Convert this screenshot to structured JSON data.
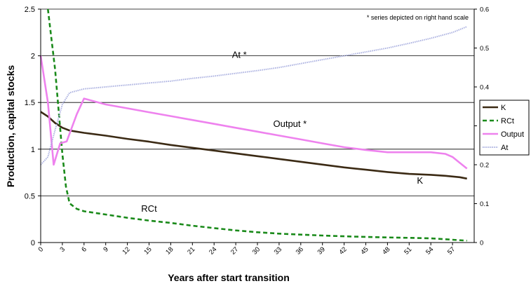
{
  "chart_data": {
    "type": "line",
    "note": "* series depicted on right hand scale",
    "xlabel": "Years after start transition",
    "ylabel": "Production, capital stocks",
    "x_ticks": [
      "0",
      "3",
      "6",
      "9",
      "12",
      "15",
      "18",
      "21",
      "24",
      "27",
      "30",
      "33",
      "36",
      "39",
      "42",
      "45",
      "48",
      "51",
      "54",
      "57"
    ],
    "xlim": [
      0,
      60
    ],
    "ylim_left": [
      0,
      2.5
    ],
    "yticks_left": [
      "0",
      "0.5",
      "1",
      "1.5",
      "2",
      "2.5"
    ],
    "ylim_right": [
      0,
      0.6
    ],
    "yticks_right": [
      "0",
      "0.1",
      "0.2",
      "0.3",
      "0.4",
      "0.5",
      "0.6"
    ],
    "grid": "horizontal",
    "legend_position": "right",
    "series": [
      {
        "name": "K",
        "axis": "left",
        "color": "#3b2a14",
        "dash": "solid",
        "points": [
          [
            0,
            1.4
          ],
          [
            1,
            1.35
          ],
          [
            2,
            1.28
          ],
          [
            3,
            1.23
          ],
          [
            4,
            1.2
          ],
          [
            6,
            1.175
          ],
          [
            9,
            1.145
          ],
          [
            12,
            1.11
          ],
          [
            15,
            1.08
          ],
          [
            18,
            1.045
          ],
          [
            21,
            1.015
          ],
          [
            24,
            0.985
          ],
          [
            27,
            0.955
          ],
          [
            30,
            0.925
          ],
          [
            33,
            0.895
          ],
          [
            36,
            0.865
          ],
          [
            39,
            0.835
          ],
          [
            42,
            0.805
          ],
          [
            45,
            0.78
          ],
          [
            48,
            0.755
          ],
          [
            51,
            0.735
          ],
          [
            54,
            0.725
          ],
          [
            56,
            0.715
          ],
          [
            58,
            0.7
          ],
          [
            59,
            0.685
          ]
        ]
      },
      {
        "name": "RCt",
        "axis": "left",
        "color": "#1a8a1a",
        "dash": "dashed",
        "points": [
          [
            1,
            2.5
          ],
          [
            2,
            1.85
          ],
          [
            3,
            0.95
          ],
          [
            3.5,
            0.6
          ],
          [
            4,
            0.42
          ],
          [
            5,
            0.36
          ],
          [
            6,
            0.335
          ],
          [
            9,
            0.3
          ],
          [
            12,
            0.265
          ],
          [
            15,
            0.235
          ],
          [
            18,
            0.21
          ],
          [
            21,
            0.18
          ],
          [
            24,
            0.155
          ],
          [
            27,
            0.13
          ],
          [
            30,
            0.11
          ],
          [
            33,
            0.095
          ],
          [
            36,
            0.085
          ],
          [
            39,
            0.075
          ],
          [
            42,
            0.067
          ],
          [
            45,
            0.06
          ],
          [
            48,
            0.055
          ],
          [
            51,
            0.05
          ],
          [
            54,
            0.045
          ],
          [
            57,
            0.03
          ],
          [
            59,
            0.02
          ]
        ]
      },
      {
        "name": "Output",
        "axis": "right",
        "color": "#ee82ee",
        "dash": "solid",
        "points": [
          [
            0,
            0.48
          ],
          [
            1,
            0.36
          ],
          [
            1.8,
            0.2
          ],
          [
            2.7,
            0.255
          ],
          [
            3.6,
            0.26
          ],
          [
            5,
            0.33
          ],
          [
            6,
            0.37
          ],
          [
            9,
            0.355
          ],
          [
            12,
            0.345
          ],
          [
            15,
            0.335
          ],
          [
            18,
            0.325
          ],
          [
            21,
            0.315
          ],
          [
            24,
            0.305
          ],
          [
            27,
            0.295
          ],
          [
            30,
            0.285
          ],
          [
            33,
            0.275
          ],
          [
            36,
            0.265
          ],
          [
            39,
            0.255
          ],
          [
            42,
            0.245
          ],
          [
            45,
            0.238
          ],
          [
            48,
            0.232
          ],
          [
            51,
            0.232
          ],
          [
            54,
            0.232
          ],
          [
            56,
            0.228
          ],
          [
            57,
            0.22
          ],
          [
            58,
            0.205
          ],
          [
            59,
            0.19
          ]
        ]
      },
      {
        "name": "At",
        "axis": "right",
        "color": "#aab0e0",
        "dash": "dotted",
        "points": [
          [
            0,
            0.2
          ],
          [
            1,
            0.22
          ],
          [
            2,
            0.29
          ],
          [
            3,
            0.355
          ],
          [
            4,
            0.385
          ],
          [
            5,
            0.39
          ],
          [
            6,
            0.395
          ],
          [
            9,
            0.4
          ],
          [
            12,
            0.405
          ],
          [
            15,
            0.41
          ],
          [
            18,
            0.415
          ],
          [
            21,
            0.422
          ],
          [
            24,
            0.428
          ],
          [
            27,
            0.435
          ],
          [
            30,
            0.442
          ],
          [
            33,
            0.45
          ],
          [
            36,
            0.46
          ],
          [
            39,
            0.47
          ],
          [
            42,
            0.48
          ],
          [
            45,
            0.49
          ],
          [
            48,
            0.5
          ],
          [
            51,
            0.512
          ],
          [
            54,
            0.525
          ],
          [
            57,
            0.54
          ],
          [
            59,
            0.555
          ]
        ]
      }
    ],
    "annotations": [
      {
        "text": "At *",
        "x": 27.5,
        "y": 1.98,
        "axis": "left"
      },
      {
        "text": "Output *",
        "x": 34.5,
        "y": 1.24,
        "axis": "left"
      },
      {
        "text": "K",
        "x": 52.5,
        "y": 0.63,
        "axis": "left"
      },
      {
        "text": "RCt",
        "x": 15,
        "y": 0.33,
        "axis": "left"
      }
    ]
  }
}
